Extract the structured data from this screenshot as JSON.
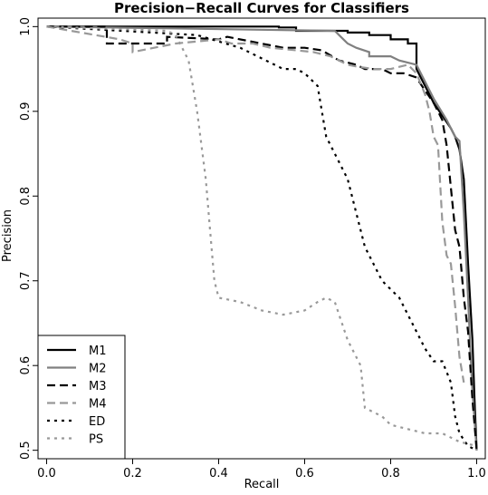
{
  "chart_data": {
    "type": "line",
    "title": "Precision−Recall Curves for Classifiers",
    "xlabel": "Recall",
    "ylabel": "Precision",
    "xlim": [
      -0.02,
      1.02
    ],
    "ylim": [
      0.49,
      1.01
    ],
    "xticks": [
      0.0,
      0.2,
      0.4,
      0.6,
      0.8,
      1.0
    ],
    "xtick_labels": [
      "0.0",
      "0.2",
      "0.4",
      "0.6",
      "0.8",
      "1.0"
    ],
    "yticks": [
      0.5,
      0.6,
      0.7,
      0.8,
      0.9,
      1.0
    ],
    "ytick_labels": [
      "0.5",
      "0.6",
      "0.7",
      "0.8",
      "0.9",
      "1.0"
    ],
    "grid": false,
    "legend_position": "bottom-left",
    "series": [
      {
        "name": "M1",
        "color": "#000000",
        "dash": "solid",
        "x": [
          0.0,
          0.54,
          0.54,
          0.58,
          0.58,
          0.7,
          0.7,
          0.75,
          0.75,
          0.8,
          0.8,
          0.84,
          0.84,
          0.86,
          0.86,
          0.9,
          0.92,
          0.94,
          0.95,
          0.96,
          0.97,
          0.98,
          0.99,
          0.995,
          1.0
        ],
        "y": [
          1.0,
          1.0,
          0.999,
          0.999,
          0.995,
          0.995,
          0.993,
          0.993,
          0.99,
          0.99,
          0.985,
          0.985,
          0.98,
          0.98,
          0.95,
          0.91,
          0.895,
          0.88,
          0.87,
          0.855,
          0.82,
          0.72,
          0.63,
          0.56,
          0.5
        ]
      },
      {
        "name": "M2",
        "color": "#808080",
        "dash": "solid",
        "x": [
          0.0,
          0.67,
          0.68,
          0.7,
          0.72,
          0.75,
          0.75,
          0.8,
          0.82,
          0.86,
          0.88,
          0.9,
          0.93,
          0.94,
          0.95,
          0.96,
          0.97,
          0.98,
          0.985,
          0.99,
          1.0
        ],
        "y": [
          1.0,
          0.995,
          0.99,
          0.98,
          0.975,
          0.97,
          0.965,
          0.965,
          0.96,
          0.955,
          0.935,
          0.915,
          0.89,
          0.88,
          0.87,
          0.865,
          0.78,
          0.68,
          0.62,
          0.57,
          0.5
        ]
      },
      {
        "name": "M3",
        "color": "#000000",
        "dash": "dashed",
        "x": [
          0.0,
          0.14,
          0.14,
          0.28,
          0.28,
          0.4,
          0.42,
          0.48,
          0.55,
          0.6,
          0.64,
          0.68,
          0.72,
          0.74,
          0.78,
          0.8,
          0.83,
          0.86,
          0.87,
          0.9,
          0.92,
          0.93,
          0.95,
          0.96,
          0.97,
          0.98,
          0.99,
          1.0
        ],
        "y": [
          1.0,
          1.0,
          0.98,
          0.98,
          0.988,
          0.985,
          0.988,
          0.982,
          0.975,
          0.975,
          0.972,
          0.96,
          0.955,
          0.95,
          0.95,
          0.945,
          0.945,
          0.94,
          0.932,
          0.91,
          0.89,
          0.86,
          0.76,
          0.74,
          0.68,
          0.64,
          0.56,
          0.5
        ]
      },
      {
        "name": "M4",
        "color": "#999999",
        "dash": "dashed",
        "x": [
          0.0,
          0.17,
          0.2,
          0.2,
          0.3,
          0.4,
          0.43,
          0.48,
          0.52,
          0.58,
          0.62,
          0.66,
          0.68,
          0.7,
          0.72,
          0.76,
          0.8,
          0.84,
          0.86,
          0.88,
          0.89,
          0.9,
          0.91,
          0.92,
          0.93,
          0.94,
          0.95,
          0.96,
          0.97
        ],
        "y": [
          1.0,
          0.985,
          0.98,
          0.97,
          0.98,
          0.985,
          0.98,
          0.98,
          0.975,
          0.972,
          0.97,
          0.965,
          0.96,
          0.955,
          0.953,
          0.95,
          0.95,
          0.955,
          0.945,
          0.92,
          0.9,
          0.87,
          0.86,
          0.77,
          0.73,
          0.72,
          0.67,
          0.61,
          0.58
        ]
      },
      {
        "name": "ED",
        "color": "#000000",
        "dash": "dotted",
        "x": [
          0.0,
          0.35,
          0.45,
          0.55,
          0.58,
          0.6,
          0.63,
          0.64,
          0.65,
          0.67,
          0.7,
          0.72,
          0.74,
          0.76,
          0.78,
          0.8,
          0.82,
          0.84,
          0.86,
          0.88,
          0.9,
          0.92,
          0.94,
          0.95,
          0.96,
          0.98,
          1.0
        ],
        "y": [
          1.0,
          0.99,
          0.975,
          0.95,
          0.95,
          0.945,
          0.93,
          0.9,
          0.87,
          0.85,
          0.82,
          0.78,
          0.74,
          0.72,
          0.7,
          0.69,
          0.68,
          0.66,
          0.64,
          0.62,
          0.605,
          0.605,
          0.58,
          0.54,
          0.52,
          0.505,
          0.5
        ]
      },
      {
        "name": "PS",
        "color": "#999999",
        "dash": "dotted",
        "x": [
          0.0,
          0.28,
          0.3,
          0.33,
          0.35,
          0.37,
          0.38,
          0.39,
          0.4,
          0.45,
          0.5,
          0.55,
          0.6,
          0.63,
          0.65,
          0.67,
          0.68,
          0.7,
          0.72,
          0.73,
          0.74,
          0.76,
          0.78,
          0.8,
          0.84,
          0.88,
          0.92,
          0.96,
          1.0
        ],
        "y": [
          1.0,
          0.995,
          0.99,
          0.96,
          0.9,
          0.82,
          0.76,
          0.7,
          0.68,
          0.675,
          0.665,
          0.66,
          0.665,
          0.675,
          0.68,
          0.675,
          0.66,
          0.63,
          0.61,
          0.6,
          0.55,
          0.545,
          0.54,
          0.53,
          0.525,
          0.52,
          0.52,
          0.51,
          0.505
        ]
      }
    ]
  }
}
